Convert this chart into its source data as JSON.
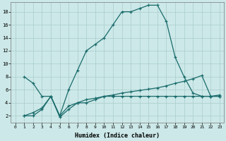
{
  "xlabel": "Humidex (Indice chaleur)",
  "xlim": [
    -0.5,
    23.5
  ],
  "ylim": [
    1,
    19.5
  ],
  "background_color": "#cce8e8",
  "grid_color": "#aacccc",
  "line_color": "#1a6b6b",
  "curve1_x": [
    1,
    2,
    3,
    4,
    5,
    6,
    7,
    8,
    9,
    10,
    11,
    12,
    13,
    14,
    15,
    16,
    17,
    18,
    19,
    20,
    21,
    22,
    23
  ],
  "curve1_y": [
    8,
    7,
    5,
    5,
    2,
    6,
    9,
    12,
    13,
    14,
    16,
    18,
    18,
    18.5,
    19,
    19,
    16.5,
    11,
    8,
    5.5,
    5,
    5,
    5
  ],
  "curve2_x": [
    1,
    2,
    3,
    4,
    5,
    6,
    7,
    8,
    9,
    10,
    11,
    12,
    13,
    14,
    15,
    16,
    17,
    18,
    19,
    20,
    21,
    22,
    23
  ],
  "curve2_y": [
    2,
    2,
    3,
    5,
    1.8,
    3,
    4,
    4,
    4.5,
    5,
    5,
    5,
    5,
    5,
    5,
    5,
    5,
    5,
    5,
    5,
    5,
    5,
    5
  ],
  "curve3_x": [
    1,
    2,
    3,
    4,
    5,
    6,
    7,
    8,
    9,
    10,
    11,
    12,
    13,
    14,
    15,
    16,
    17,
    18,
    19,
    20,
    21,
    22,
    23
  ],
  "curve3_y": [
    2,
    2.5,
    3.2,
    5,
    2,
    3.5,
    4,
    4.5,
    4.7,
    5,
    5.2,
    5.5,
    5.7,
    5.9,
    6.1,
    6.3,
    6.6,
    7.0,
    7.3,
    7.7,
    8.2,
    5,
    5.2
  ]
}
